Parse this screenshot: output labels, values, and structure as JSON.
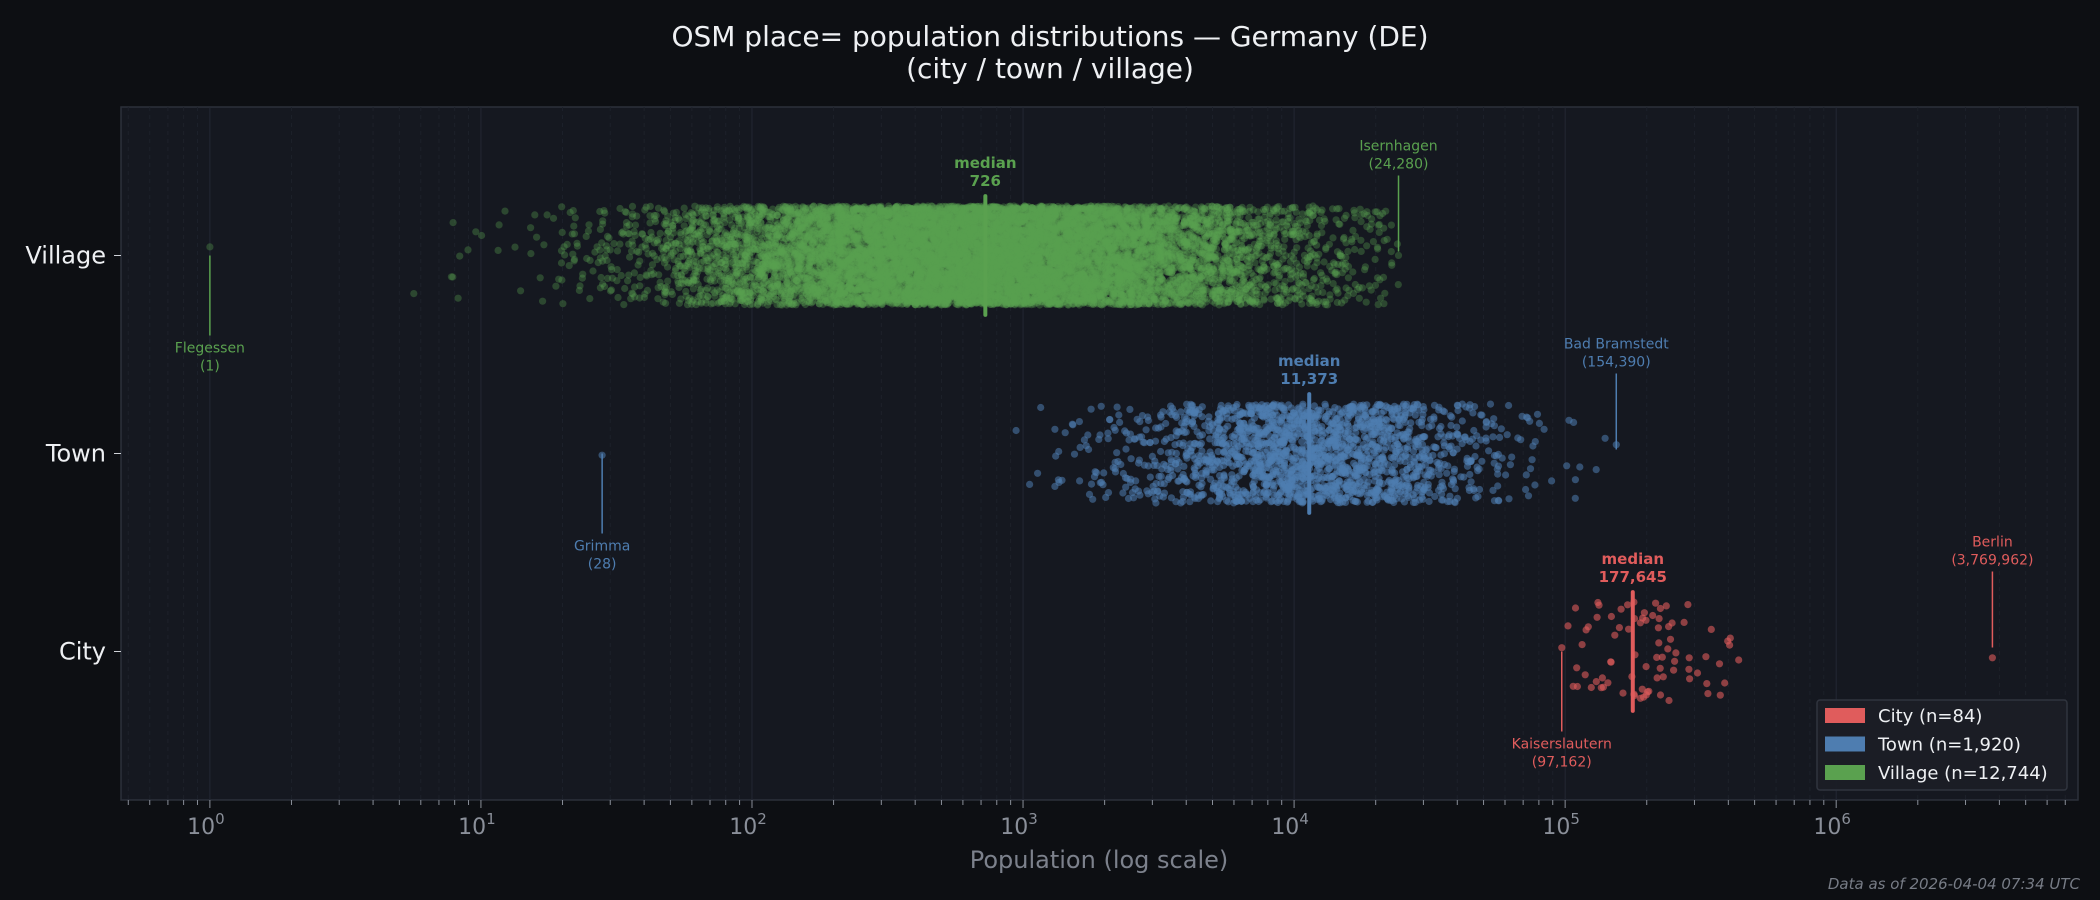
{
  "chart_data": {
    "type": "scatter",
    "title": "OSM place= population distributions — Germany (DE)",
    "subtitle": "(city / town / village)",
    "xlabel": "Population (log scale)",
    "ylabel": "",
    "xscale": "log",
    "xlim": [
      0.47,
      7800000
    ],
    "x_tick_labels": [
      "10^0",
      "10^1",
      "10^2",
      "10^3",
      "10^4",
      "10^5",
      "10^6"
    ],
    "x_tick_values": [
      1,
      10,
      100,
      1000,
      10000,
      100000,
      1000000
    ],
    "categories": [
      "City",
      "Town",
      "Village"
    ],
    "grid": "vertical, faint",
    "legend_position": "bottom-right",
    "median_label": "median",
    "series": [
      {
        "name": "City",
        "legend": "City  (n=84)",
        "n": 84,
        "color": "#e05c5c",
        "median": 177645,
        "median_text": "177,645",
        "min": {
          "name": "Kaiserslautern",
          "value": 97162,
          "text": "(97,162)"
        },
        "max": {
          "name": "Berlin",
          "value": 3769962,
          "text": "(3,769,962)"
        }
      },
      {
        "name": "Town",
        "legend": "Town  (n=1,920)",
        "n": 1920,
        "color": "#4e7db0",
        "median": 11373,
        "median_text": "11,373",
        "min": {
          "name": "Grimma",
          "value": 28,
          "text": "(28)"
        },
        "max": {
          "name": "Bad Bramstedt",
          "value": 154390,
          "text": "(154,390)"
        }
      },
      {
        "name": "Village",
        "legend": "Village  (n=12,744)",
        "n": 12744,
        "color": "#5aa14f",
        "median": 726,
        "median_text": "726",
        "min": {
          "name": "Flegessen",
          "value": 1,
          "text": "(1)"
        },
        "max": {
          "name": "Isernhagen",
          "value": 24280,
          "text": "(24,280)"
        }
      }
    ]
  },
  "footer": "Data as of 2026-04-04 07:34 UTC"
}
